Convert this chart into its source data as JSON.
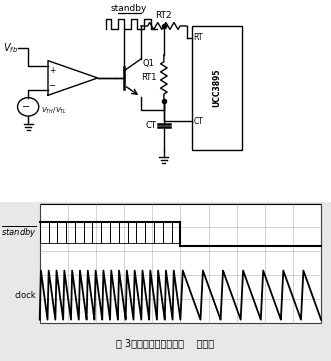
{
  "caption": "图 3时钟频率突降实现电    钟波形",
  "background": "#e8e8e8",
  "line_color": "#000000",
  "grid_color": "#999999",
  "white": "#ffffff",
  "standby_label": "standby",
  "clock_label": "clock",
  "chip_label": "UCC3895",
  "rt2_label": "RT2",
  "rt1_label": "RT1",
  "ct_label": "CT",
  "q1_label": "Q1",
  "rt_pin": "RT",
  "ct_pin": "CT",
  "vfb_label": "V_{fb}",
  "vth_vtl_label": "V_{TH}/V_{TL}"
}
